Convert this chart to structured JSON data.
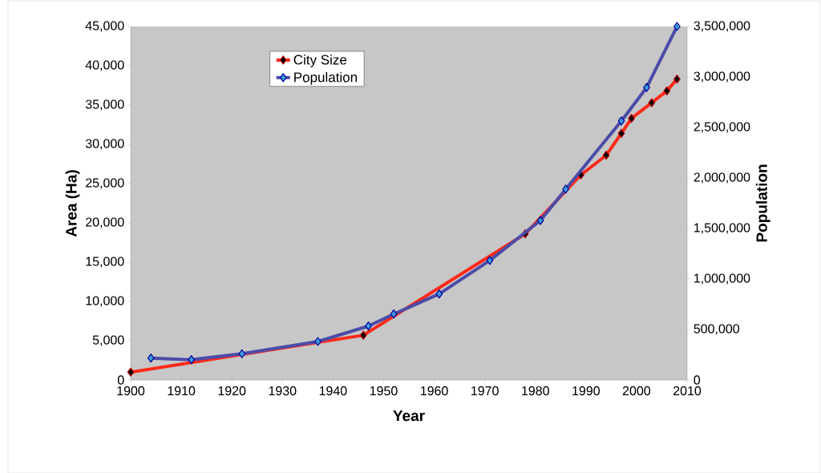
{
  "chart_data": {
    "type": "line",
    "xlabel": "Year",
    "ylabel": "Area (Ha)",
    "y2label": "Population",
    "marker": "diamond",
    "legend": "top left",
    "grid": false,
    "xlim": [
      1900,
      2010
    ],
    "xticks": [
      1900,
      1910,
      1920,
      1930,
      1940,
      1950,
      1960,
      1970,
      1980,
      1990,
      2000,
      2010
    ],
    "ylim": [
      0,
      45000
    ],
    "yticks": [
      0,
      {
        "value": 5000,
        "label": "5,000"
      },
      {
        "value": 10000,
        "label": "10,000"
      },
      {
        "value": 15000,
        "label": "15,000"
      },
      {
        "value": 20000,
        "label": "20,000"
      },
      {
        "value": 25000,
        "label": "25,000"
      },
      {
        "value": 30000,
        "label": "30,000"
      },
      {
        "value": 35000,
        "label": "35,000"
      },
      {
        "value": 40000,
        "label": "40,000"
      },
      {
        "value": 45000,
        "label": "45,000"
      }
    ],
    "y2lim": [
      0,
      3500000
    ],
    "y2ticks": [
      0,
      {
        "value": 500000,
        "label": "500,000"
      },
      {
        "value": 1000000,
        "label": "1,000,000"
      },
      {
        "value": 1500000,
        "label": "1,500,000"
      },
      {
        "value": 2000000,
        "label": "2,000,000"
      },
      {
        "value": 2500000,
        "label": "2,500,000"
      },
      {
        "value": 3000000,
        "label": "3,000,000"
      },
      {
        "value": 3500000,
        "label": "3,500,000"
      }
    ],
    "series": [
      {
        "name": "City Size",
        "color": "#ff2a1a",
        "x": [
          1900,
          1946,
          1978,
          1989,
          1994,
          1997,
          1999,
          2003,
          2006,
          2008
        ],
        "values": [
          1000,
          5700,
          18600,
          26100,
          28600,
          31400,
          33300,
          35300,
          36800,
          38300
        ]
      },
      {
        "name": "Population",
        "color": "#4b4ba8",
        "axis": "y2",
        "x": [
          1904,
          1912,
          1922,
          1937,
          1947,
          1952,
          1961,
          1971,
          1981,
          1986,
          1997,
          2002,
          2008
        ],
        "values": [
          217000,
          201000,
          260000,
          381000,
          534000,
          653000,
          852000,
          1183000,
          1579000,
          1889000,
          2564000,
          2895000,
          3500000
        ]
      }
    ]
  }
}
